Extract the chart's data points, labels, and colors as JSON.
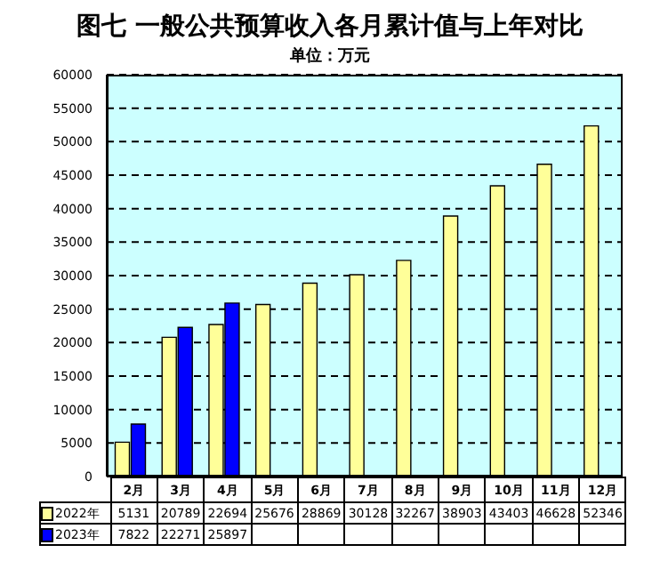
{
  "chart_data": {
    "type": "bar",
    "title": "图七 一般公共预算收入各月累计值与上年对比",
    "subtitle": "单位：万元",
    "categories": [
      "2月",
      "3月",
      "4月",
      "5月",
      "6月",
      "7月",
      "8月",
      "9月",
      "10月",
      "11月",
      "12月"
    ],
    "series": [
      {
        "name": "2022年",
        "color": "#ffff99",
        "values": [
          5131,
          20789,
          22694,
          25676,
          28869,
          30128,
          32267,
          38903,
          43403,
          46628,
          52346
        ]
      },
      {
        "name": "2023年",
        "color": "#0000ff",
        "values": [
          7822,
          22271,
          25897,
          null,
          null,
          null,
          null,
          null,
          null,
          null,
          null
        ]
      }
    ],
    "ylim": [
      0,
      60000
    ],
    "yticks": [
      0,
      5000,
      10000,
      15000,
      20000,
      25000,
      30000,
      35000,
      40000,
      45000,
      50000,
      55000,
      60000
    ],
    "grid": "y",
    "legend": "bottom left",
    "data_labels": true
  }
}
